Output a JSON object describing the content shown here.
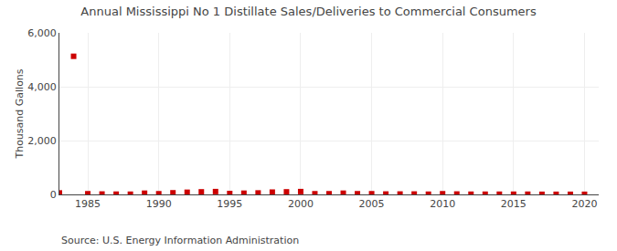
{
  "chart_data": {
    "type": "scatter",
    "title": "Annual Mississippi No 1 Distillate Sales/Deliveries to Commercial Consumers",
    "ylabel": "Thousand Gallons",
    "annotations": [
      "Source: U.S. Energy Information Administration"
    ],
    "x": [
      1983,
      1984,
      1985,
      1986,
      1987,
      1988,
      1989,
      1990,
      1991,
      1992,
      1993,
      1994,
      1995,
      1996,
      1997,
      1998,
      1999,
      2000,
      2001,
      2002,
      2003,
      2004,
      2005,
      2006,
      2007,
      2008,
      2009,
      2010,
      2011,
      2012,
      2013,
      2014,
      2015,
      2016,
      2017,
      2018,
      2019,
      2020
    ],
    "values": [
      55,
      5130,
      25,
      15,
      10,
      8,
      45,
      25,
      60,
      80,
      95,
      105,
      35,
      45,
      55,
      85,
      95,
      105,
      25,
      25,
      45,
      25,
      25,
      15,
      15,
      15,
      8,
      25,
      15,
      8,
      8,
      8,
      8,
      8,
      4,
      4,
      4,
      4
    ],
    "color": "#cc0000",
    "marker": "square",
    "xlim": [
      1983,
      2021
    ],
    "xticks": [
      1985,
      1990,
      1995,
      2000,
      2005,
      2010,
      2015,
      2020
    ],
    "ylim": [
      0,
      6000
    ],
    "yticks": [
      0,
      {
        "value": 2000,
        "label": "2,000"
      },
      {
        "value": 4000,
        "label": "4,000"
      },
      {
        "value": 6000,
        "label": "6,000"
      }
    ],
    "grid": true
  }
}
